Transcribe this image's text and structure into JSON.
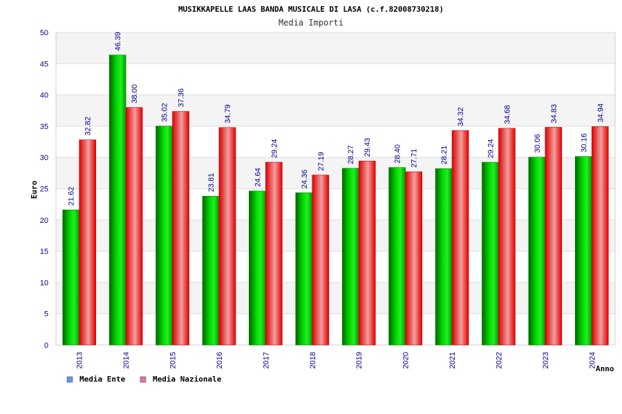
{
  "chart_data": {
    "type": "bar",
    "title": "MUSIKKAPELLE LAAS BANDA MUSICALE DI LASA (c.f.82008730218)",
    "subtitle": "Media Importi",
    "xlabel": "Anno",
    "ylabel": "Euro",
    "ylim": [
      0,
      50
    ],
    "yticks": [
      0,
      5,
      10,
      15,
      20,
      25,
      30,
      35,
      40,
      45,
      50
    ],
    "categories": [
      "2013",
      "2014",
      "2015",
      "2016",
      "2017",
      "2018",
      "2019",
      "2020",
      "2021",
      "2022",
      "2023",
      "2024"
    ],
    "series": [
      {
        "name": "Media Ente",
        "color": "#00cc00",
        "values": [
          21.62,
          46.39,
          35.02,
          23.81,
          24.64,
          24.36,
          28.27,
          28.4,
          28.21,
          29.24,
          30.06,
          30.16
        ],
        "labels": [
          "21.62",
          "46.39",
          "35.02",
          "23.81",
          "24.64",
          "24.36",
          "28.27",
          "28.40",
          "28.21",
          "29.24",
          "30.06",
          "30.16"
        ]
      },
      {
        "name": "Media Nazionale",
        "color": "#ee1111",
        "values": [
          32.82,
          38.0,
          37.36,
          34.79,
          29.24,
          27.19,
          29.43,
          27.71,
          34.32,
          34.68,
          34.83,
          34.94
        ],
        "labels": [
          "32.82",
          "38.00",
          "37.36",
          "34.79",
          "29.24",
          "27.19",
          "29.43",
          "27.71",
          "34.32",
          "34.68",
          "34.83",
          "34.94"
        ]
      }
    ],
    "grid": true,
    "legend_position": "bottom-left",
    "legend_swatch_colors": [
      "#6699ee",
      "#dd77aa"
    ]
  }
}
